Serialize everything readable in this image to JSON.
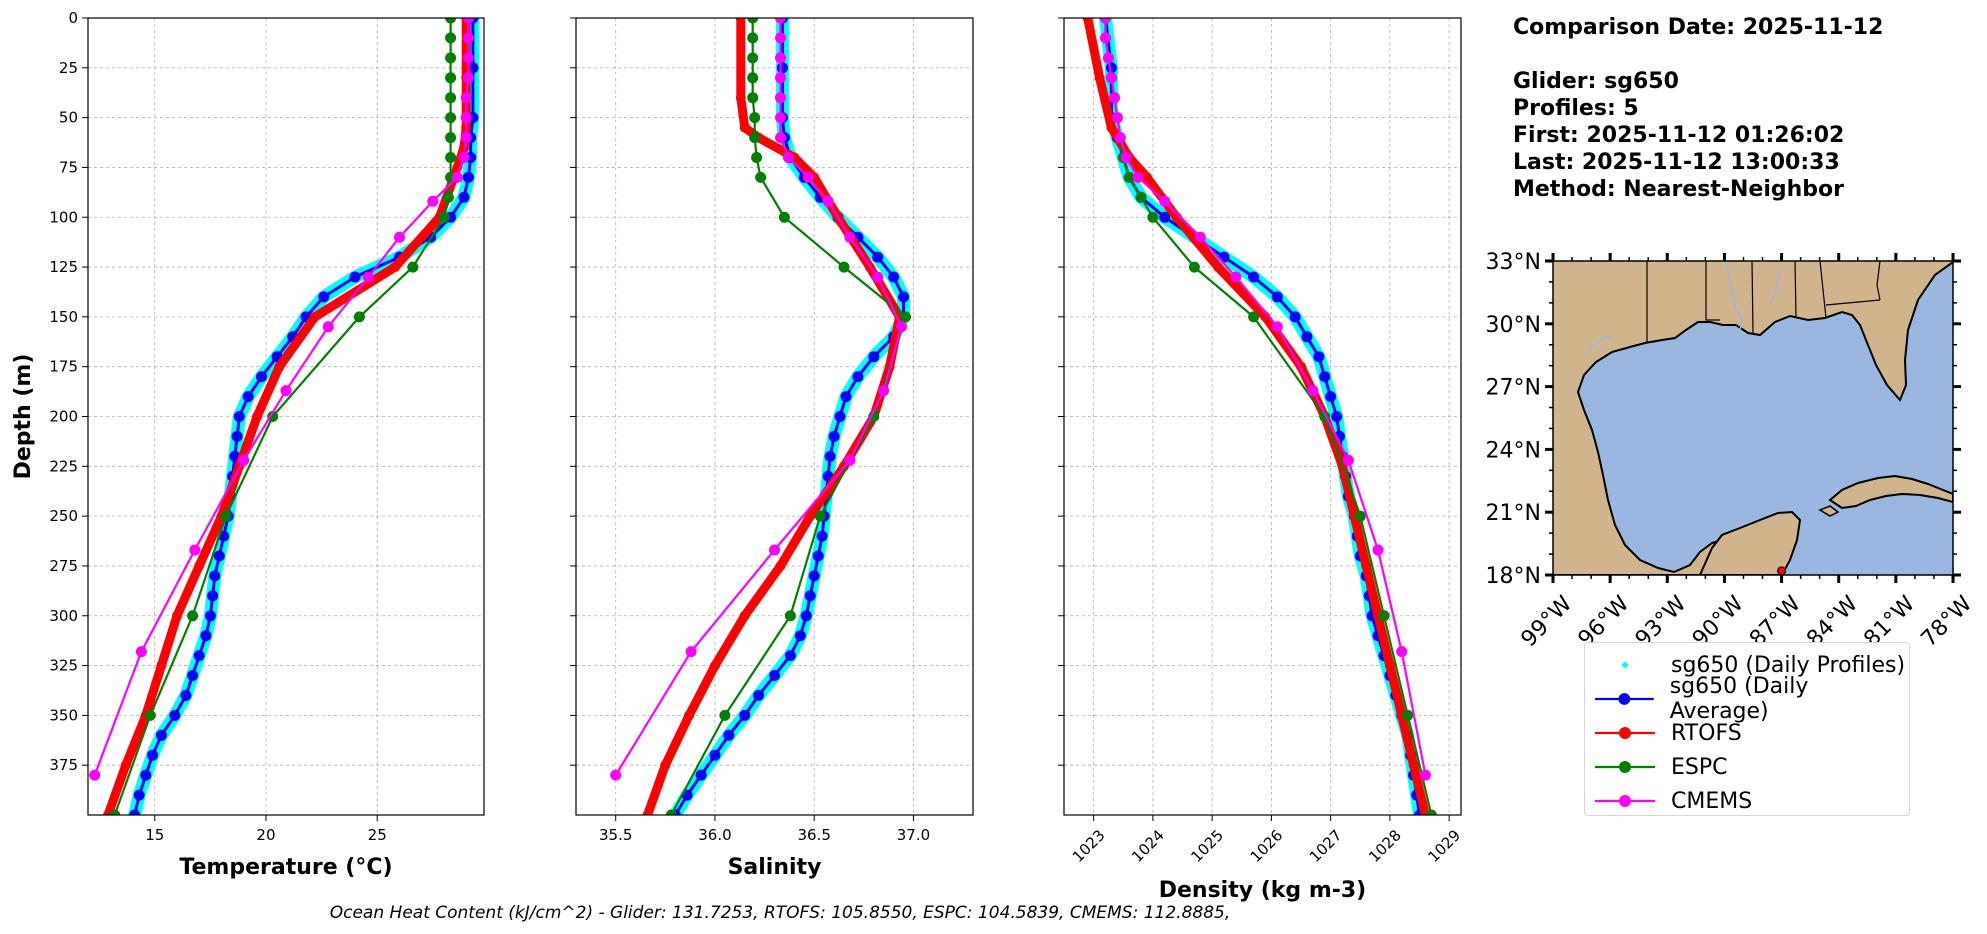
{
  "info": {
    "comparison_date": "Comparison Date: 2025-11-12",
    "glider": "Glider: sg650",
    "profiles": "Profiles: 5",
    "first": "First: 2025-11-12 01:26:02",
    "last": "Last: 2025-11-12 13:00:33",
    "method": "Method: Nearest-Neighbor"
  },
  "footer": "Ocean Heat Content (kJ/cm^2) - Glider: 131.7253,  RTOFS: 105.8550,  ESPC: 104.5839,  CMEMS: 112.8885,",
  "colors": {
    "daily_profiles": "#00ffff",
    "daily_average": "#0000ff",
    "rtofs": "#ff0000",
    "espc": "#008000",
    "cmems": "#ff00ff",
    "land": "#d2b48c",
    "water": "#99b7e1"
  },
  "legend": [
    {
      "key": "daily_profiles",
      "label": "sg650 (Daily Profiles)",
      "style": "dots"
    },
    {
      "key": "daily_average",
      "label": "sg650 (Daily Average)",
      "style": "line-marker"
    },
    {
      "key": "rtofs",
      "label": "RTOFS",
      "style": "line-marker"
    },
    {
      "key": "espc",
      "label": "ESPC",
      "style": "line-marker"
    },
    {
      "key": "cmems",
      "label": "CMEMS",
      "style": "line-marker"
    }
  ],
  "chart_data": [
    {
      "type": "line",
      "xlabel": "Temperature (°C)",
      "ylabel": "Depth (m)",
      "xlim": [
        12,
        29.8
      ],
      "ylim": [
        400,
        0
      ],
      "xticks": [
        15,
        20,
        25
      ],
      "yticks": [
        0,
        25,
        50,
        75,
        100,
        125,
        150,
        175,
        200,
        225,
        250,
        275,
        300,
        325,
        350,
        375
      ],
      "grid": true,
      "series": [
        {
          "key": "daily_profiles",
          "depth": [
            0,
            25,
            50,
            60,
            70,
            80,
            90,
            100,
            110,
            120,
            130,
            140,
            150,
            160,
            170,
            180,
            190,
            200,
            210,
            220,
            230,
            240,
            250,
            260,
            270,
            280,
            290,
            300,
            310,
            320,
            330,
            340,
            350,
            360,
            370,
            380,
            390,
            400
          ],
          "values": [
            29.3,
            29.3,
            29.3,
            29.2,
            29.2,
            29.1,
            28.9,
            28.3,
            27.4,
            26.0,
            24.0,
            22.6,
            21.8,
            21.2,
            20.5,
            19.8,
            19.2,
            18.8,
            18.7,
            18.6,
            18.5,
            18.4,
            18.3,
            18.1,
            17.9,
            17.7,
            17.6,
            17.5,
            17.3,
            17.0,
            16.7,
            16.4,
            15.9,
            15.3,
            14.9,
            14.6,
            14.3,
            14.1
          ]
        },
        {
          "key": "daily_average",
          "depth": [
            0,
            25,
            50,
            60,
            70,
            80,
            90,
            100,
            110,
            120,
            130,
            140,
            150,
            160,
            170,
            180,
            190,
            200,
            210,
            220,
            230,
            240,
            250,
            260,
            270,
            280,
            290,
            300,
            310,
            320,
            330,
            340,
            350,
            360,
            370,
            380,
            390,
            400
          ],
          "values": [
            29.3,
            29.3,
            29.3,
            29.2,
            29.2,
            29.1,
            28.9,
            28.3,
            27.4,
            26.0,
            24.0,
            22.6,
            21.8,
            21.2,
            20.5,
            19.8,
            19.2,
            18.8,
            18.7,
            18.6,
            18.5,
            18.4,
            18.3,
            18.1,
            17.9,
            17.7,
            17.6,
            17.5,
            17.3,
            17.0,
            16.7,
            16.4,
            15.9,
            15.3,
            14.9,
            14.6,
            14.3,
            14.1
          ]
        },
        {
          "key": "rtofs",
          "depth": [
            0,
            30,
            55,
            65,
            75,
            100,
            125,
            150,
            175,
            200,
            225,
            250,
            275,
            300,
            325,
            350,
            375,
            400
          ],
          "values": [
            29.0,
            29.0,
            29.0,
            28.9,
            28.6,
            27.8,
            25.8,
            22.2,
            20.6,
            19.6,
            18.8,
            18.0,
            17.0,
            16.0,
            15.3,
            14.6,
            13.7,
            12.9
          ]
        },
        {
          "key": "espc",
          "depth": [
            0,
            10,
            20,
            30,
            40,
            50,
            60,
            70,
            80,
            90,
            100,
            125,
            150,
            200,
            250,
            300,
            350,
            400
          ],
          "values": [
            28.3,
            28.3,
            28.3,
            28.3,
            28.3,
            28.3,
            28.3,
            28.3,
            28.3,
            28.2,
            28.0,
            26.6,
            24.2,
            20.3,
            18.2,
            16.7,
            14.8,
            13.2
          ]
        },
        {
          "key": "cmems",
          "depth": [
            0,
            10,
            20,
            30,
            40,
            50,
            60,
            70,
            80,
            92,
            110,
            130,
            155,
            187,
            222,
            267,
            318,
            380
          ],
          "values": [
            29.1,
            29.1,
            29.1,
            29.1,
            29.0,
            29.0,
            29.0,
            28.9,
            28.6,
            27.5,
            26.0,
            24.6,
            22.8,
            20.9,
            19.0,
            16.8,
            14.4,
            12.3
          ]
        }
      ]
    },
    {
      "type": "line",
      "xlabel": "Salinity",
      "xlim": [
        35.3,
        37.3
      ],
      "ylim": [
        400,
        0
      ],
      "xticks": [
        35.5,
        36.0,
        36.5,
        37.0
      ],
      "xtick_labels": [
        "35.5",
        "36.0",
        "36.5",
        "37.0"
      ],
      "grid": true,
      "series": [
        {
          "key": "daily_profiles",
          "depth": [
            0,
            25,
            50,
            60,
            70,
            80,
            90,
            100,
            110,
            120,
            130,
            140,
            150,
            160,
            170,
            180,
            190,
            200,
            210,
            220,
            230,
            240,
            250,
            260,
            270,
            280,
            290,
            300,
            310,
            320,
            330,
            340,
            350,
            360,
            370,
            380,
            390,
            400
          ],
          "values": [
            36.34,
            36.34,
            36.34,
            36.35,
            36.38,
            36.45,
            36.53,
            36.62,
            36.72,
            36.82,
            36.9,
            36.95,
            36.95,
            36.9,
            36.8,
            36.72,
            36.66,
            36.63,
            36.6,
            36.58,
            36.57,
            36.56,
            36.55,
            36.54,
            36.52,
            36.5,
            36.48,
            36.46,
            36.43,
            36.38,
            36.3,
            36.22,
            36.15,
            36.07,
            36.0,
            35.93,
            35.86,
            35.8
          ]
        },
        {
          "key": "daily_average",
          "depth": [
            0,
            25,
            50,
            60,
            70,
            80,
            90,
            100,
            110,
            120,
            130,
            140,
            150,
            160,
            170,
            180,
            190,
            200,
            210,
            220,
            230,
            240,
            250,
            260,
            270,
            280,
            290,
            300,
            310,
            320,
            330,
            340,
            350,
            360,
            370,
            380,
            390,
            400
          ],
          "values": [
            36.34,
            36.34,
            36.34,
            36.35,
            36.38,
            36.45,
            36.53,
            36.62,
            36.72,
            36.82,
            36.9,
            36.95,
            36.95,
            36.9,
            36.8,
            36.72,
            36.66,
            36.63,
            36.6,
            36.58,
            36.57,
            36.56,
            36.55,
            36.54,
            36.52,
            36.5,
            36.48,
            36.46,
            36.43,
            36.38,
            36.3,
            36.22,
            36.15,
            36.07,
            36.0,
            35.93,
            35.86,
            35.8
          ]
        },
        {
          "key": "rtofs",
          "depth": [
            0,
            40,
            55,
            60,
            70,
            80,
            100,
            125,
            150,
            175,
            200,
            225,
            250,
            275,
            300,
            325,
            350,
            375,
            400
          ],
          "values": [
            36.13,
            36.13,
            36.15,
            36.22,
            36.4,
            36.5,
            36.62,
            36.78,
            36.93,
            36.88,
            36.8,
            36.65,
            36.48,
            36.33,
            36.15,
            36.0,
            35.87,
            35.75,
            35.66
          ]
        },
        {
          "key": "espc",
          "depth": [
            0,
            10,
            20,
            30,
            40,
            50,
            60,
            70,
            80,
            100,
            125,
            150,
            200,
            250,
            300,
            350,
            400
          ],
          "values": [
            36.19,
            36.19,
            36.19,
            36.19,
            36.19,
            36.2,
            36.2,
            36.21,
            36.23,
            36.35,
            36.65,
            36.96,
            36.8,
            36.53,
            36.38,
            36.05,
            35.78
          ]
        },
        {
          "key": "cmems",
          "depth": [
            0,
            10,
            20,
            30,
            40,
            50,
            60,
            70,
            80,
            92,
            110,
            130,
            155,
            187,
            222,
            267,
            318,
            380
          ],
          "values": [
            36.33,
            36.33,
            36.33,
            36.33,
            36.33,
            36.33,
            36.33,
            36.37,
            36.47,
            36.57,
            36.68,
            36.82,
            36.94,
            36.85,
            36.68,
            36.3,
            35.88,
            35.5
          ]
        }
      ]
    },
    {
      "type": "line",
      "xlabel": "Density (kg m-3)",
      "xlim": [
        1022.5,
        1029.2
      ],
      "ylim": [
        400,
        0
      ],
      "xticks": [
        1023,
        1024,
        1025,
        1026,
        1027,
        1028,
        1029
      ],
      "grid": true,
      "series": [
        {
          "key": "daily_profiles",
          "depth": [
            0,
            25,
            50,
            60,
            70,
            80,
            90,
            100,
            110,
            120,
            130,
            140,
            150,
            160,
            170,
            180,
            190,
            200,
            210,
            220,
            230,
            240,
            250,
            260,
            270,
            280,
            290,
            300,
            310,
            320,
            330,
            340,
            350,
            360,
            370,
            380,
            390,
            400
          ],
          "values": [
            1023.2,
            1023.3,
            1023.3,
            1023.4,
            1023.5,
            1023.6,
            1023.8,
            1024.2,
            1024.7,
            1025.2,
            1025.7,
            1026.1,
            1026.4,
            1026.6,
            1026.8,
            1026.9,
            1027.0,
            1027.1,
            1027.15,
            1027.2,
            1027.25,
            1027.3,
            1027.4,
            1027.45,
            1027.5,
            1027.6,
            1027.65,
            1027.7,
            1027.8,
            1027.9,
            1028.0,
            1028.1,
            1028.2,
            1028.3,
            1028.35,
            1028.4,
            1028.45,
            1028.5
          ]
        },
        {
          "key": "daily_average",
          "depth": [
            0,
            25,
            50,
            60,
            70,
            80,
            90,
            100,
            110,
            120,
            130,
            140,
            150,
            160,
            170,
            180,
            190,
            200,
            210,
            220,
            230,
            240,
            250,
            260,
            270,
            280,
            290,
            300,
            310,
            320,
            330,
            340,
            350,
            360,
            370,
            380,
            390,
            400
          ],
          "values": [
            1023.2,
            1023.3,
            1023.3,
            1023.4,
            1023.5,
            1023.6,
            1023.8,
            1024.2,
            1024.7,
            1025.2,
            1025.7,
            1026.1,
            1026.4,
            1026.6,
            1026.8,
            1026.9,
            1027.0,
            1027.1,
            1027.15,
            1027.2,
            1027.25,
            1027.3,
            1027.4,
            1027.45,
            1027.5,
            1027.6,
            1027.65,
            1027.7,
            1027.8,
            1027.9,
            1028.0,
            1028.1,
            1028.2,
            1028.3,
            1028.35,
            1028.4,
            1028.45,
            1028.5
          ]
        },
        {
          "key": "rtofs",
          "depth": [
            0,
            30,
            55,
            70,
            80,
            100,
            125,
            150,
            175,
            200,
            225,
            250,
            275,
            300,
            325,
            350,
            375,
            400
          ],
          "values": [
            1022.9,
            1023.1,
            1023.3,
            1023.6,
            1023.9,
            1024.4,
            1025.1,
            1025.9,
            1026.5,
            1026.9,
            1027.2,
            1027.4,
            1027.6,
            1027.8,
            1028.0,
            1028.2,
            1028.4,
            1028.6
          ]
        },
        {
          "key": "espc",
          "depth": [
            0,
            10,
            20,
            30,
            40,
            50,
            60,
            70,
            80,
            90,
            100,
            125,
            150,
            200,
            250,
            300,
            350,
            400
          ],
          "values": [
            1023.2,
            1023.2,
            1023.25,
            1023.3,
            1023.35,
            1023.4,
            1023.45,
            1023.5,
            1023.6,
            1023.8,
            1024.0,
            1024.7,
            1025.7,
            1026.9,
            1027.5,
            1027.9,
            1028.3,
            1028.7
          ]
        },
        {
          "key": "cmems",
          "depth": [
            0,
            10,
            20,
            30,
            40,
            50,
            60,
            70,
            80,
            92,
            110,
            130,
            155,
            187,
            222,
            267,
            318,
            380
          ],
          "values": [
            1023.2,
            1023.2,
            1023.25,
            1023.3,
            1023.35,
            1023.4,
            1023.45,
            1023.55,
            1023.75,
            1024.2,
            1024.8,
            1025.4,
            1026.1,
            1026.7,
            1027.3,
            1027.8,
            1028.2,
            1028.6
          ]
        }
      ]
    }
  ],
  "map": {
    "type": "map",
    "lon_range": [
      -99,
      -78
    ],
    "lat_range": [
      18,
      33
    ],
    "lat_ticks": [
      "33°N",
      "30°N",
      "27°N",
      "24°N",
      "21°N",
      "18°N"
    ],
    "lon_ticks": [
      "99°W",
      "96°W",
      "93°W",
      "90°W",
      "87°W",
      "84°W",
      "81°W",
      "78°W"
    ],
    "glider_position": {
      "lon": -87.0,
      "lat": 18.2
    }
  }
}
